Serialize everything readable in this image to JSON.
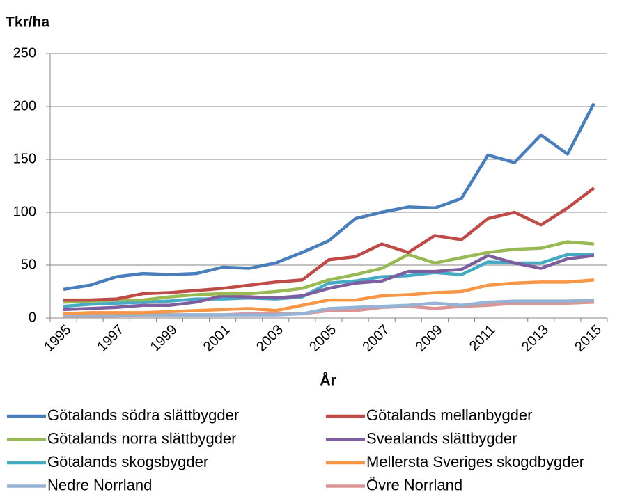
{
  "chart_data": {
    "type": "line",
    "y_label": "Tkr/ha",
    "x_label": "År",
    "categories": [
      "1995",
      null,
      "1997",
      null,
      "1999",
      null,
      "2001",
      null,
      "2003",
      null,
      "2005",
      null,
      "2007",
      null,
      "2009",
      null,
      "2011",
      null,
      "2013",
      null,
      "2015"
    ],
    "ylim": [
      0,
      250
    ],
    "yticks": [
      0,
      50,
      100,
      150,
      200,
      250
    ],
    "grid": true,
    "series": [
      {
        "name": "Götalands södra slättbygder",
        "color": "#4a7ebb",
        "values": [
          27,
          31,
          39,
          42,
          41,
          42,
          48,
          47,
          52,
          62,
          73,
          94,
          100,
          105,
          104,
          113,
          154,
          147,
          173,
          155,
          203
        ]
      },
      {
        "name": "Götalands mellanbygder",
        "color": "#be4b48",
        "values": [
          17,
          17,
          18,
          23,
          24,
          26,
          28,
          31,
          34,
          36,
          55,
          58,
          70,
          62,
          78,
          74,
          94,
          100,
          88,
          104,
          123
        ]
      },
      {
        "name": "Götalands norra slättbygder",
        "color": "#98b954",
        "values": [
          15,
          16,
          17,
          17,
          20,
          22,
          23,
          23,
          25,
          28,
          36,
          41,
          47,
          60,
          52,
          57,
          62,
          65,
          66,
          72,
          70
        ]
      },
      {
        "name": "Svealands slättbygder",
        "color": "#7d5fa0",
        "values": [
          8,
          9,
          10,
          12,
          12,
          15,
          21,
          20,
          19,
          21,
          28,
          33,
          35,
          44,
          44,
          46,
          59,
          52,
          47,
          56,
          59
        ]
      },
      {
        "name": "Götalands skogsbygder",
        "color": "#46aac5",
        "values": [
          11,
          13,
          14,
          15,
          16,
          18,
          18,
          19,
          18,
          20,
          33,
          35,
          39,
          40,
          43,
          41,
          53,
          52,
          52,
          60,
          60
        ]
      },
      {
        "name": "Mellersta Sveriges skogdbygder",
        "color": "#f79646",
        "values": [
          4,
          5,
          5,
          5,
          6,
          7,
          8,
          9,
          7,
          12,
          17,
          17,
          21,
          22,
          24,
          25,
          31,
          33,
          34,
          34,
          36
        ]
      },
      {
        "name": "Nedre Norrland",
        "color": "#94b3d6",
        "values": [
          3,
          3,
          3,
          3,
          3,
          3,
          3,
          3,
          3,
          4,
          9,
          10,
          11,
          12,
          14,
          12,
          15,
          16,
          16,
          16,
          17
        ]
      },
      {
        "name": "Övre Norrland",
        "color": "#d99694",
        "values": [
          2,
          2,
          2,
          3,
          3,
          3,
          3,
          4,
          4,
          4,
          7,
          7,
          10,
          11,
          9,
          11,
          12,
          14,
          14,
          14,
          15
        ]
      }
    ]
  }
}
